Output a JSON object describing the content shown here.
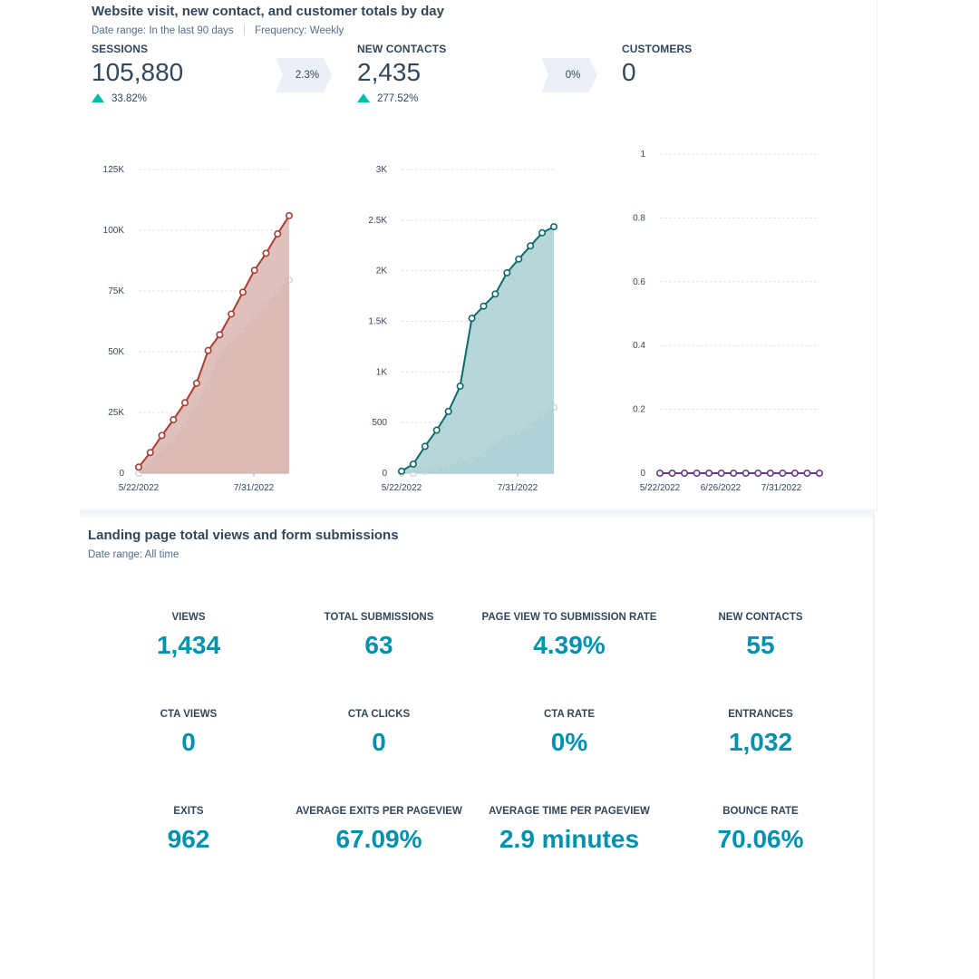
{
  "report1": {
    "title": "Website visit, new contact, and customer totals by day",
    "date_range_label": "Date range:",
    "date_range_value": "In the last 90 days",
    "frequency_label": "Frequency:",
    "frequency_value": "Weekly"
  },
  "kpis": [
    {
      "label": "SESSIONS",
      "value": "105,880",
      "change": "33.82%",
      "conversion": "2.3%"
    },
    {
      "label": "NEW CONTACTS",
      "value": "2,435",
      "change": "277.52%",
      "conversion": "0%"
    },
    {
      "label": "CUSTOMERS",
      "value": "0"
    }
  ],
  "colors": {
    "sessions_line": "#a93f32",
    "sessions_fill": "#d9b5b0",
    "contacts_line": "#0b6a6a",
    "contacts_fill": "#a9cfd2",
    "customers_line": "#6a3d83",
    "previous_line": "#d7d7d7",
    "accent_value": "#0091ae",
    "positive": "#00bda5"
  },
  "chart_data": [
    {
      "type": "area",
      "name": "sessions",
      "x_ticks": [
        "5/22/2022",
        "7/31/2022"
      ],
      "y_ticks": [
        "0",
        "25K",
        "50K",
        "75K",
        "100K",
        "125K"
      ],
      "ylim": [
        0,
        125000
      ],
      "series": [
        {
          "values": [
            2500,
            8500,
            15500,
            22000,
            29000,
            37000,
            50500,
            57000,
            65500,
            74500,
            83500,
            90500,
            98500,
            106000
          ]
        },
        {
          "values": [
            0,
            4000,
            9500,
            13000,
            19500,
            28000,
            36000,
            48000,
            54500,
            58500,
            64000,
            69000,
            74500,
            79500
          ]
        }
      ]
    },
    {
      "type": "area",
      "name": "new_contacts",
      "x_ticks": [
        "5/22/2022",
        "7/31/2022"
      ],
      "y_ticks": [
        "0",
        "500",
        "1K",
        "1.5K",
        "2K",
        "2.5K",
        "3K"
      ],
      "ylim": [
        0,
        3000
      ],
      "series": [
        {
          "values": [
            20,
            90,
            265,
            425,
            610,
            860,
            1530,
            1650,
            1770,
            1980,
            2115,
            2245,
            2375,
            2435
          ]
        },
        {
          "values": [
            0,
            0,
            20,
            40,
            70,
            100,
            130,
            170,
            300,
            345,
            395,
            450,
            570,
            650
          ]
        }
      ]
    },
    {
      "type": "line",
      "name": "customers",
      "x_ticks": [
        "5/22/2022",
        "6/26/2022",
        "7/31/2022"
      ],
      "y_ticks": [
        "0",
        "0.2",
        "0.4",
        "0.6",
        "0.8",
        "1"
      ],
      "ylim": [
        0,
        1
      ],
      "series": [
        {
          "values": [
            0,
            0,
            0,
            0,
            0,
            0,
            0,
            0,
            0,
            0,
            0,
            0,
            0,
            0
          ]
        }
      ]
    }
  ],
  "report2": {
    "title": "Landing page total views and form submissions",
    "date_range_label": "Date range:",
    "date_range_value": "All time",
    "stats": [
      {
        "label": "VIEWS",
        "value": "1,434"
      },
      {
        "label": "TOTAL SUBMISSIONS",
        "value": "63"
      },
      {
        "label": "PAGE VIEW TO SUBMISSION RATE",
        "value": "4.39%"
      },
      {
        "label": "NEW CONTACTS",
        "value": "55"
      },
      {
        "label": "CTA VIEWS",
        "value": "0"
      },
      {
        "label": "CTA CLICKS",
        "value": "0"
      },
      {
        "label": "CTA RATE",
        "value": "0%"
      },
      {
        "label": "ENTRANCES",
        "value": "1,032"
      },
      {
        "label": "EXITS",
        "value": "962"
      },
      {
        "label": "AVERAGE EXITS PER PAGEVIEW",
        "value": "67.09%"
      },
      {
        "label": "AVERAGE TIME PER PAGEVIEW",
        "value": "2.9 minutes"
      },
      {
        "label": "BOUNCE RATE",
        "value": "70.06%"
      }
    ]
  }
}
